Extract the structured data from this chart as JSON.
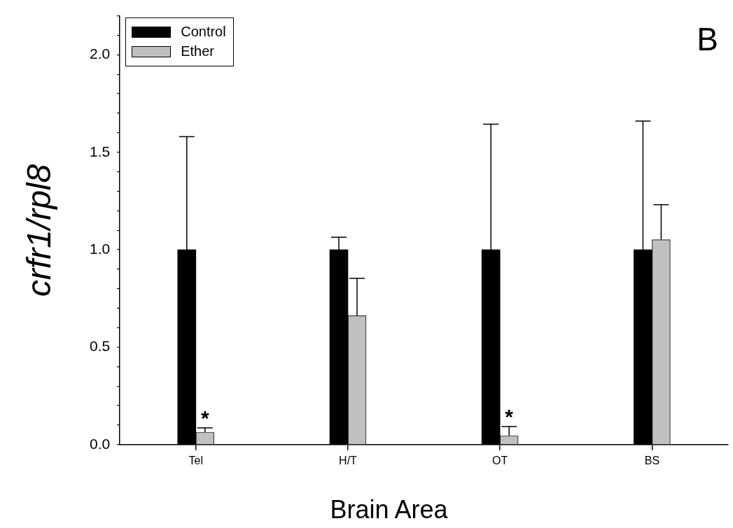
{
  "chart_data": {
    "type": "bar",
    "xlabel": "Brain Area",
    "ylabel": "crfr1/rpl8",
    "categories": [
      "Tel",
      "H/T",
      "OT",
      "BS"
    ],
    "series": [
      {
        "name": "Control",
        "color": "#000000",
        "values": [
          1.0,
          1.0,
          1.0,
          1.0
        ],
        "errors": [
          [
            1.0,
            1.58
          ],
          [
            1.0,
            1.064
          ],
          [
            1.0,
            1.644
          ],
          [
            1.0,
            1.66
          ]
        ]
      },
      {
        "name": "Ether",
        "color": "#c0c0c0",
        "values": [
          0.064,
          0.662,
          0.046,
          1.052
        ],
        "errors": [
          [
            0.064,
            0.086
          ],
          [
            0.662,
            0.853
          ],
          [
            0.046,
            0.093
          ],
          [
            1.052,
            1.231
          ]
        ]
      }
    ],
    "ylim": [
      0,
      2.2
    ],
    "yticks": [
      {
        "value": 0,
        "label": "0.0"
      },
      {
        "value": 0.1,
        "label": null
      },
      {
        "value": 0.2,
        "label": null
      },
      {
        "value": 0.3,
        "label": null
      },
      {
        "value": 0.4,
        "label": null
      },
      {
        "value": 0.5,
        "label": "0.5"
      },
      {
        "value": 0.6,
        "label": null
      },
      {
        "value": 0.7,
        "label": null
      },
      {
        "value": 0.8,
        "label": null
      },
      {
        "value": 0.9,
        "label": null
      },
      {
        "value": 1,
        "label": "1.0"
      },
      {
        "value": 1.1,
        "label": null
      },
      {
        "value": 1.2,
        "label": null
      },
      {
        "value": 1.3,
        "label": null
      },
      {
        "value": 1.4,
        "label": null
      },
      {
        "value": 1.5,
        "label": "1.5"
      },
      {
        "value": 1.6,
        "label": null
      },
      {
        "value": 1.7,
        "label": null
      },
      {
        "value": 1.8,
        "label": null
      },
      {
        "value": 1.9,
        "label": null
      },
      {
        "value": 2,
        "label": "2.0"
      },
      {
        "value": 2.1,
        "label": null
      },
      {
        "value": 2.2,
        "label": null
      }
    ],
    "annotations": [
      {
        "text": "*",
        "x": "Tel",
        "y": 0.086
      },
      {
        "text": "*",
        "x": "OT",
        "y": 0.093
      },
      "B"
    ],
    "legend": "top left",
    "grid": false
  }
}
